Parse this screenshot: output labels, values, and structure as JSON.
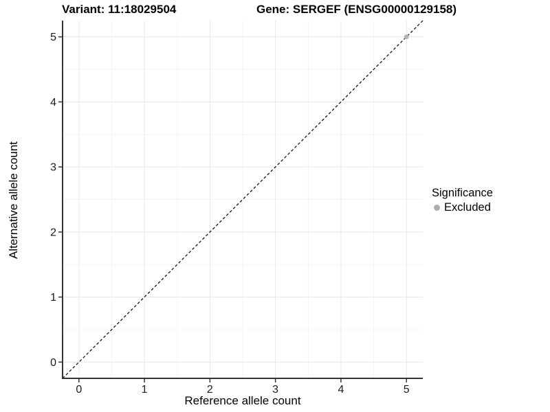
{
  "chart_data": {
    "type": "scatter",
    "title_left": "Variant: 11:18029504",
    "title_right": "Gene: SERGEF (ENSG00000129158)",
    "xlabel": "Reference allele count",
    "ylabel": "Alternative allele count",
    "xlim": [
      -0.25,
      5.25
    ],
    "ylim": [
      -0.25,
      5.25
    ],
    "xticks": [
      0,
      1,
      2,
      3,
      4,
      5
    ],
    "yticks": [
      0,
      1,
      2,
      3,
      4,
      5
    ],
    "xticks_minor": [
      0.5,
      1.5,
      2.5,
      3.5,
      4.5
    ],
    "yticks_minor": [
      0.5,
      1.5,
      2.5,
      3.5,
      4.5
    ],
    "grid": "major+minor",
    "identity_line": {
      "style": "dashed",
      "color": "#000000",
      "from": -0.25,
      "to": 5.25,
      "dash": "4 3"
    },
    "series": [
      {
        "name": "Excluded",
        "color": "#b5b5b5",
        "points": [
          {
            "x": 5,
            "y": 5
          }
        ]
      }
    ],
    "legend": {
      "title": "Significance",
      "position": "right",
      "entries": [
        {
          "label": "Excluded",
          "color": "#aeaeae"
        }
      ]
    },
    "style": {
      "background": "#ffffff",
      "grid_major": "#e7e7e7",
      "grid_minor": "#f3f3f3",
      "axis_line": "#333333",
      "tick_color": "#333333",
      "tick_label_color": "#1a1a1a",
      "point_radius": 3.5
    }
  }
}
